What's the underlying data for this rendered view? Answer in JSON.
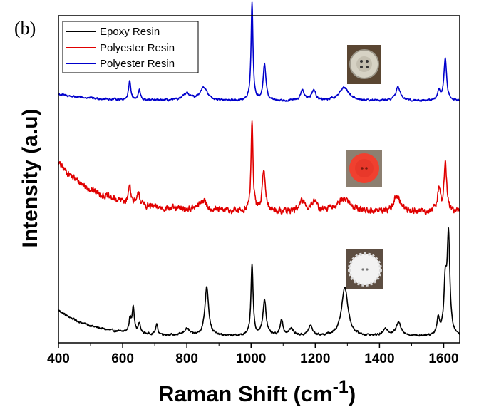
{
  "chart_data": {
    "type": "line",
    "panel_label": "(b)",
    "xlabel": "Raman Shift (cm",
    "xlabel_sup": "-1",
    "xlabel_end": ")",
    "ylabel": "Intensity (a.u)",
    "xlim": [
      400,
      1650
    ],
    "ylim": [
      0,
      100
    ],
    "x_ticks": [
      400,
      600,
      800,
      1000,
      1200,
      1400,
      1600
    ],
    "legend_position": "top-left",
    "series": [
      {
        "name": "Epoxy Resin",
        "color": "#000000",
        "baseline": 2,
        "start": 8,
        "decay": 110,
        "noise": 0.5,
        "peaks": [
          [
            623,
            4,
            4
          ],
          [
            633,
            8,
            4
          ],
          [
            652,
            3,
            4
          ],
          [
            706,
            3,
            4
          ],
          [
            800,
            2,
            10
          ],
          [
            862,
            15,
            7
          ],
          [
            1003,
            22,
            4
          ],
          [
            1042,
            11,
            6
          ],
          [
            1095,
            5,
            5
          ],
          [
            1125,
            2,
            10
          ],
          [
            1185,
            3,
            8
          ],
          [
            1292,
            15,
            12
          ],
          [
            1420,
            2,
            10
          ],
          [
            1460,
            4,
            10
          ],
          [
            1583,
            5,
            5
          ],
          [
            1605,
            15,
            5
          ],
          [
            1615,
            30,
            5
          ]
        ]
      },
      {
        "name": "Polyester Resin",
        "color": "#e00000",
        "baseline": 40,
        "start": 15,
        "decay": 130,
        "noise": 1.6,
        "peaks": [
          [
            622,
            6,
            4
          ],
          [
            650,
            4,
            4
          ],
          [
            850,
            3,
            14
          ],
          [
            1003,
            28,
            3.5
          ],
          [
            1040,
            12,
            6
          ],
          [
            1160,
            3,
            10
          ],
          [
            1195,
            3,
            10
          ],
          [
            1290,
            4,
            25
          ],
          [
            1455,
            5,
            12
          ],
          [
            1585,
            7,
            5
          ],
          [
            1605,
            15,
            5
          ]
        ]
      },
      {
        "name": "Polyester Resin",
        "color": "#0000cc",
        "baseline": 74,
        "start": 2,
        "decay": 110,
        "noise": 0.5,
        "peaks": [
          [
            622,
            6,
            4
          ],
          [
            652,
            3,
            4
          ],
          [
            800,
            2,
            14
          ],
          [
            852,
            4,
            14
          ],
          [
            1003,
            30,
            3.5
          ],
          [
            1042,
            11,
            5
          ],
          [
            1160,
            3,
            7
          ],
          [
            1195,
            3,
            8
          ],
          [
            1290,
            4,
            18
          ],
          [
            1458,
            4,
            9
          ],
          [
            1585,
            3,
            5
          ],
          [
            1605,
            13,
            5
          ]
        ]
      }
    ]
  }
}
